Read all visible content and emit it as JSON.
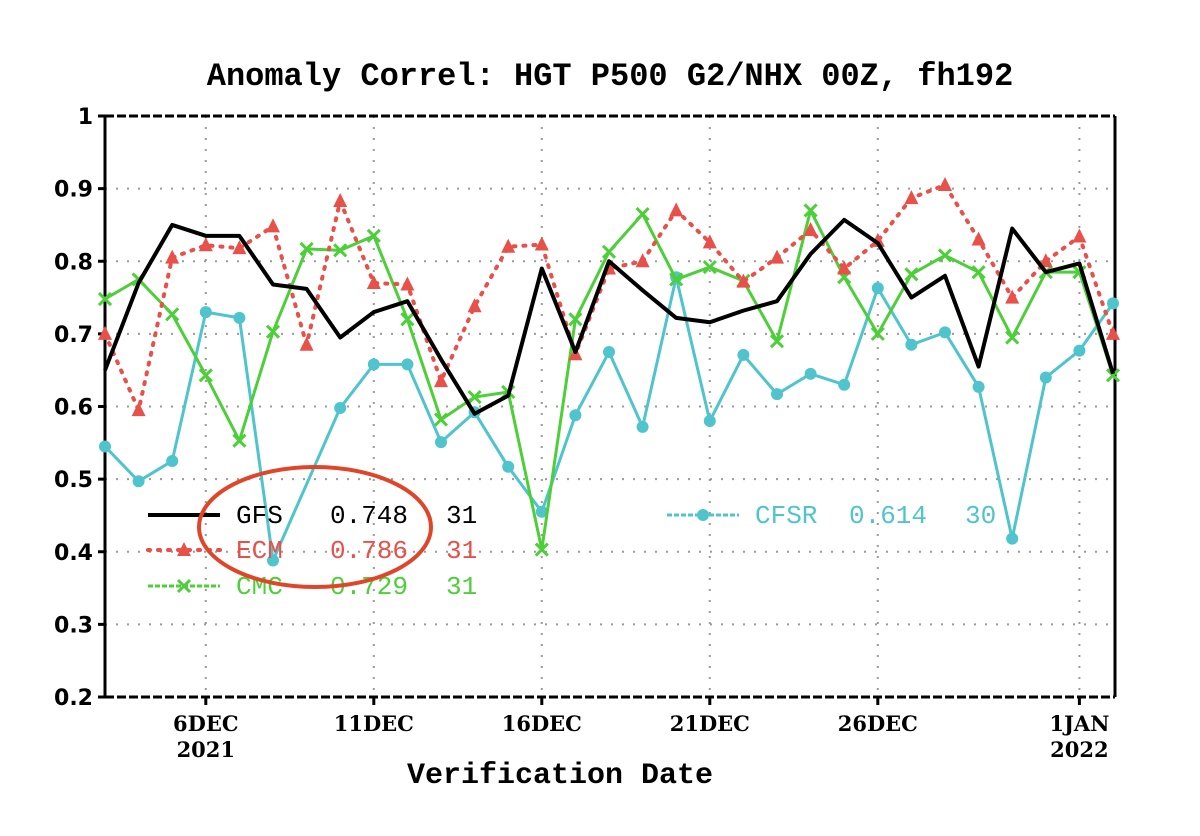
{
  "chart_data": {
    "type": "line",
    "title": "Anomaly Correl: HGT P500 G2/NHX 00Z, fh192",
    "xlabel": "Verification Date",
    "ylabel": "",
    "ylim": [
      0.2,
      1.0
    ],
    "yticks": [
      "1",
      "0.9",
      "0.8",
      "0.7",
      "0.6",
      "0.5",
      "0.4",
      "0.3",
      "0.2"
    ],
    "ytick_values": [
      1.0,
      0.9,
      0.8,
      0.7,
      0.6,
      0.5,
      0.4,
      0.3,
      0.2
    ],
    "x_start": "2021-12-03",
    "x_days": 31,
    "x": [
      "3DEC",
      "4DEC",
      "5DEC",
      "6DEC",
      "7DEC",
      "8DEC",
      "9DEC",
      "10DEC",
      "11DEC",
      "12DEC",
      "13DEC",
      "14DEC",
      "15DEC",
      "16DEC",
      "17DEC",
      "18DEC",
      "19DEC",
      "20DEC",
      "21DEC",
      "22DEC",
      "23DEC",
      "24DEC",
      "25DEC",
      "26DEC",
      "27DEC",
      "28DEC",
      "29DEC",
      "30DEC",
      "31DEC",
      "1JAN",
      "2JAN"
    ],
    "xticks": [
      {
        "day_index": 3,
        "line1": "6DEC",
        "line2": "2021"
      },
      {
        "day_index": 8,
        "line1": "11DEC",
        "line2": ""
      },
      {
        "day_index": 13,
        "line1": "16DEC",
        "line2": ""
      },
      {
        "day_index": 18,
        "line1": "21DEC",
        "line2": ""
      },
      {
        "day_index": 23,
        "line1": "26DEC",
        "line2": ""
      },
      {
        "day_index": 29,
        "line1": "1JAN",
        "line2": "2022"
      }
    ],
    "grid": true,
    "series": [
      {
        "name": "GFS",
        "mean": "0.748",
        "count": "31",
        "color": "#000000",
        "marker": "none",
        "style": "solid",
        "values": [
          0.65,
          0.77,
          0.85,
          0.835,
          0.835,
          0.768,
          0.762,
          0.695,
          0.73,
          0.745,
          0.665,
          0.59,
          0.615,
          0.79,
          0.675,
          0.8,
          0.76,
          0.722,
          0.716,
          0.732,
          0.745,
          0.81,
          0.857,
          0.825,
          0.75,
          0.78,
          0.655,
          0.845,
          0.785,
          0.797,
          0.645
        ]
      },
      {
        "name": "ECM",
        "mean": "0.786",
        "count": "31",
        "color": "#e8504a",
        "marker": "triangle",
        "style": "dotted",
        "values": [
          0.7,
          0.595,
          0.805,
          0.822,
          0.818,
          0.848,
          0.685,
          0.883,
          0.77,
          0.768,
          0.635,
          0.738,
          0.82,
          0.823,
          0.672,
          0.79,
          0.8,
          0.87,
          0.826,
          0.772,
          0.805,
          0.843,
          0.79,
          0.828,
          0.887,
          0.905,
          0.83,
          0.75,
          0.8,
          0.834,
          0.7
        ]
      },
      {
        "name": "CMC",
        "mean": "0.729",
        "count": "31",
        "color": "#4ccf38",
        "marker": "x",
        "style": "solid",
        "values": [
          0.748,
          0.775,
          0.727,
          0.643,
          0.553,
          0.703,
          0.817,
          0.815,
          0.835,
          0.72,
          0.582,
          0.613,
          0.62,
          0.403,
          0.72,
          0.813,
          0.865,
          0.775,
          0.792,
          0.773,
          0.69,
          0.87,
          0.778,
          0.7,
          0.782,
          0.808,
          0.785,
          0.695,
          0.785,
          0.785,
          0.643
        ]
      },
      {
        "name": "CFSR",
        "mean": "0.614",
        "count": "30",
        "color": "#4fc4cc",
        "marker": "circle",
        "style": "solid",
        "values": [
          0.545,
          0.497,
          0.525,
          0.73,
          0.722,
          0.388,
          null,
          0.598,
          0.658,
          0.658,
          0.551,
          0.592,
          0.517,
          0.455,
          0.588,
          0.675,
          0.572,
          0.778,
          0.58,
          0.671,
          0.617,
          0.645,
          0.63,
          0.763,
          0.685,
          0.702,
          0.627,
          0.418,
          0.64,
          0.677,
          0.742
        ]
      }
    ],
    "legend": "inside plot, lower-left (GFS/ECM/CMC) and lower-center (CFSR)",
    "annotations": [
      {
        "type": "ellipse",
        "color": "#e0452a",
        "note": "red hand-drawn ellipse circling the GFS and ECM legend labels and means"
      }
    ]
  }
}
